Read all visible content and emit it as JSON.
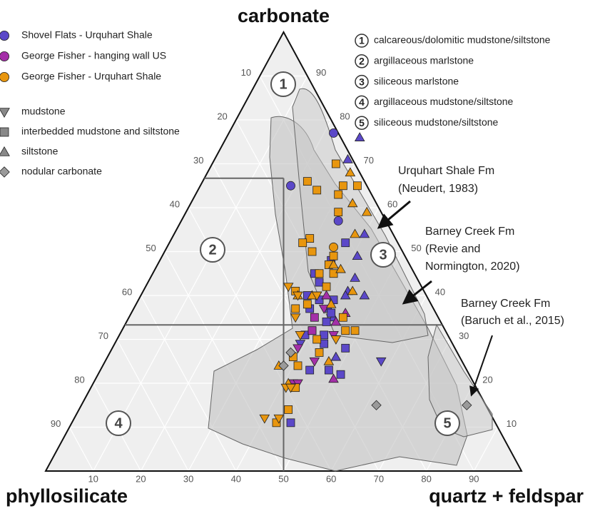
{
  "chart_data": {
    "type": "ternary",
    "axis_titles": {
      "carbonate": "carbonate",
      "phyllosilicate": "phyllosilicate",
      "quartz_feldspar": "quartz + feldspar"
    },
    "ticks": [
      10,
      20,
      30,
      40,
      50,
      60,
      70,
      80,
      90
    ],
    "grid": true,
    "class_boundaries": {
      "carbonate": [
        66.7,
        33.3
      ]
    },
    "fields": [
      {
        "number": "1",
        "name": "calcareous/dolomitic mudstone/siltstone"
      },
      {
        "number": "2",
        "name": "argillaceous marlstone"
      },
      {
        "number": "3",
        "name": "siliceous marlstone"
      },
      {
        "number": "4",
        "name": "argillaceous mudstone/siltstone"
      },
      {
        "number": "5",
        "name": "siliceous mudstone/siltstone"
      }
    ],
    "annotations": [
      {
        "lines": [
          "Urquhart Shale Fm",
          "(Neudert, 1983)"
        ]
      },
      {
        "lines": [
          "Barney Creek Fm",
          "(Revie and",
          "Normington, 2020)"
        ]
      },
      {
        "lines": [
          "Barney Creek Fm",
          "(Baruch et al., 2015)"
        ]
      }
    ],
    "series_marker": "circle",
    "series": [
      {
        "name": "Shovel Flats - Urquhart Shale",
        "color": "#5b48c8",
        "points": {
          "circle": {
            "carbonate": [
              77,
              65,
              57
            ],
            "quartz_feldspar": [
              22,
              19,
              33
            ]
          },
          "triangle": {
            "carbonate": [
              76,
              71,
              54,
              49,
              44,
              41,
              40,
              40,
              35,
              37,
              26
            ],
            "quartz_feldspar": [
              28,
              28,
              40,
              41,
              43,
              43,
              47,
              43,
              43,
              41,
              48
            ]
          },
          "square": {
            "carbonate": [
              52,
              48,
              45,
              43,
              40,
              39,
              39,
              37,
              36,
              34,
              31,
              32,
              31,
              28,
              23,
              23,
              22,
              11,
              29
            ],
            "quartz_feldspar": [
              37,
              36,
              34,
              36,
              35,
              38,
              41,
              37,
              42,
              42,
              39,
              40,
              43,
              49,
              44,
              48,
              51,
              46,
              44
            ]
          },
          "triangle-down": {
            "carbonate": [
              40,
              25,
              29
            ],
            "quartz_feldspar": [
              37,
              58,
              39
            ]
          }
        }
      },
      {
        "name": "George Fisher - hanging wall US",
        "color": "#a42fa8",
        "points": {
          "triangle": {
            "carbonate": [
              40,
              36,
              34,
              21
            ],
            "quartz_feldspar": [
              39,
              45,
              44,
              50
            ]
          },
          "square": {
            "carbonate": [
              35,
              32
            ],
            "quartz_feldspar": [
              39,
              40
            ]
          },
          "triangle-down": {
            "carbonate": [
              37,
              31,
              28,
              25,
              20,
              20
            ],
            "quartz_feldspar": [
              40,
              45,
              39,
              44,
              42,
              43
            ]
          }
        }
      },
      {
        "name": "George Fisher - Urquhart Shale",
        "color": "#e8960e",
        "points": {
          "circle": {
            "carbonate": [
              51
            ],
            "quartz_feldspar": [
              35
            ]
          },
          "square": {
            "carbonate": [
              66,
              70,
              65,
              65,
              64,
              63,
              59,
              53,
              52,
              50,
              49,
              47,
              45,
              45,
              42,
              41,
              38,
              37,
              35,
              32,
              32,
              30,
              27,
              26,
              24,
              14,
              11,
              19
            ],
            "quartz_feldspar": [
              22,
              26,
              30,
              33,
              25,
              30,
              32,
              29,
              28,
              31,
              36,
              36,
              35,
              38,
              38,
              32,
              36,
              34,
              45,
              47,
              49,
              42,
              44,
              39,
              41,
              44,
              43,
              43
            ]
          },
          "triangle": {
            "carbonate": [
              68,
              61,
              59,
              54,
              47,
              46,
              41,
              40,
              40,
              38,
              25,
              24,
              20
            ],
            "quartz_feldspar": [
              30,
              34,
              38,
              38,
              37,
              39,
              44,
              33,
              36,
              41,
              47,
              37,
              41
            ]
          },
          "triangle-down": {
            "carbonate": [
              42,
              40,
              40,
              35,
              30,
              31,
              19,
              19,
              12,
              12
            ],
            "quartz_feldspar": [
              30,
              33,
              37,
              35,
              46,
              38,
              41,
              42,
              40,
              43
            ]
          }
        }
      }
    ],
    "markers": [
      {
        "name": "mudstone",
        "shape": "triangle-down",
        "color": "#888888"
      },
      {
        "name": "interbedded mudstone and siltstone",
        "shape": "square",
        "color": "#888888"
      },
      {
        "name": "siltstone",
        "shape": "triangle",
        "color": "#888888"
      },
      {
        "name": "nodular carbonate",
        "shape": "diamond",
        "color": "#9a9a9a",
        "carbonate": [
          27,
          24,
          15,
          15
        ],
        "quartz_feldspar": [
          38,
          38,
          62,
          81
        ]
      }
    ]
  }
}
